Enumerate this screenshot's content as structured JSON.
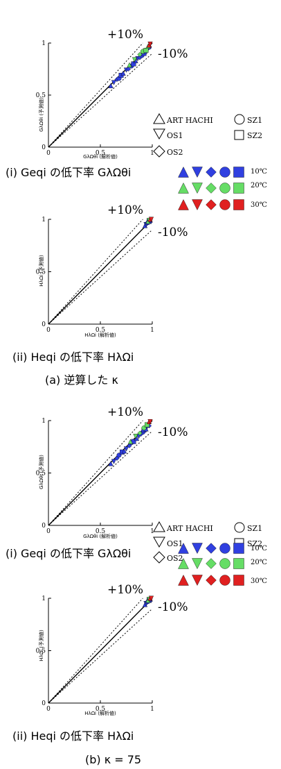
{
  "figure": {
    "section_a_caption": "(a) 逆算した κ",
    "section_b_caption": "(b) κ = 75"
  },
  "legend": {
    "specimens": [
      "ART HACHI",
      "OS1",
      "OS2",
      "SZ1",
      "SZ2"
    ],
    "temperatures": [
      "10℃",
      "20℃",
      "30℃"
    ],
    "colors": {
      "10℃": "#3040e0",
      "20℃": "#66dd66",
      "30℃": "#e02020"
    },
    "shapes": [
      "triangle-up",
      "triangle-down",
      "diamond",
      "circle",
      "square"
    ]
  },
  "chart_data": [
    {
      "type": "scatter",
      "panel": "(a)(i)",
      "caption": "(i) Geqi の低下率 GλΩθi",
      "xlabel": "GλΩθi (解析値)",
      "ylabel": "GλΩθi (予測値)",
      "xlim": [
        0,
        1
      ],
      "ylim": [
        0,
        1
      ],
      "xticks": [
        "0",
        "0.5",
        "1"
      ],
      "yticks": [
        "0",
        "0.5",
        "1"
      ],
      "annotations": [
        "+10%",
        "-10%"
      ],
      "reference_lines": [
        {
          "slope": 1
        },
        {
          "slope": 1.1
        },
        {
          "slope": 0.9
        }
      ],
      "series": [
        {
          "name": "10℃",
          "points": [
            [
              0.6,
              0.59
            ],
            [
              0.63,
              0.62
            ],
            [
              0.66,
              0.65
            ],
            [
              0.68,
              0.66
            ],
            [
              0.7,
              0.69
            ],
            [
              0.72,
              0.71
            ],
            [
              0.75,
              0.74
            ],
            [
              0.77,
              0.75
            ],
            [
              0.8,
              0.78
            ],
            [
              0.82,
              0.8
            ],
            [
              0.84,
              0.83
            ],
            [
              0.86,
              0.85
            ],
            [
              0.88,
              0.86
            ],
            [
              0.9,
              0.88
            ],
            [
              0.92,
              0.9
            ],
            [
              0.93,
              0.92
            ],
            [
              0.95,
              0.93
            ],
            [
              0.96,
              0.95
            ],
            [
              0.97,
              0.96
            ]
          ]
        },
        {
          "name": "20℃",
          "points": [
            [
              0.78,
              0.79
            ],
            [
              0.83,
              0.84
            ],
            [
              0.88,
              0.89
            ],
            [
              0.91,
              0.92
            ],
            [
              0.94,
              0.93
            ],
            [
              0.96,
              0.97
            ]
          ]
        },
        {
          "name": "30℃",
          "points": [
            [
              0.97,
              0.98
            ],
            [
              0.98,
              0.99
            ]
          ]
        }
      ]
    },
    {
      "type": "scatter",
      "panel": "(a)(ii)",
      "caption": "(ii) Heqi の低下率 HλΩi",
      "xlabel": "HλΩi (解析値)",
      "ylabel": "HλΩi (予測値)",
      "xlim": [
        0,
        1
      ],
      "ylim": [
        0,
        1
      ],
      "xticks": [
        "0",
        "0.5",
        "1"
      ],
      "yticks": [
        "0",
        "0.5",
        "1"
      ],
      "annotations": [
        "+10%",
        "-10%"
      ],
      "reference_lines": [
        {
          "slope": 1
        },
        {
          "slope": 1.1
        },
        {
          "slope": 0.9
        }
      ],
      "series": [
        {
          "name": "10℃",
          "points": [
            [
              0.93,
              0.94
            ],
            [
              0.94,
              0.95
            ],
            [
              0.95,
              0.96
            ],
            [
              0.96,
              0.97
            ],
            [
              0.97,
              0.98
            ],
            [
              0.98,
              0.99
            ]
          ]
        },
        {
          "name": "20℃",
          "points": [
            [
              0.96,
              0.98
            ],
            [
              0.97,
              0.99
            ]
          ]
        },
        {
          "name": "30℃",
          "points": [
            [
              0.98,
              1.0
            ],
            [
              0.99,
              1.0
            ]
          ]
        }
      ]
    },
    {
      "type": "scatter",
      "panel": "(b)(i)",
      "caption": "(i) Geqi の低下率 GλΩθi",
      "xlabel": "GλΩθi (解析値)",
      "ylabel": "GλΩθi (予測値)",
      "xlim": [
        0,
        1
      ],
      "ylim": [
        0,
        1
      ],
      "xticks": [
        "0",
        "0.5",
        "1"
      ],
      "yticks": [
        "0",
        "0.5",
        "1"
      ],
      "annotations": [
        "+10%",
        "-10%"
      ],
      "reference_lines": [
        {
          "slope": 1
        },
        {
          "slope": 1.1
        },
        {
          "slope": 0.9
        }
      ],
      "series": [
        {
          "name": "10℃",
          "points": [
            [
              0.6,
              0.59
            ],
            [
              0.63,
              0.61
            ],
            [
              0.66,
              0.64
            ],
            [
              0.68,
              0.67
            ],
            [
              0.71,
              0.7
            ],
            [
              0.73,
              0.71
            ],
            [
              0.75,
              0.73
            ],
            [
              0.78,
              0.76
            ],
            [
              0.8,
              0.79
            ],
            [
              0.82,
              0.8
            ],
            [
              0.85,
              0.83
            ],
            [
              0.87,
              0.85
            ],
            [
              0.89,
              0.87
            ],
            [
              0.91,
              0.89
            ],
            [
              0.92,
              0.91
            ],
            [
              0.94,
              0.92
            ],
            [
              0.95,
              0.94
            ],
            [
              0.97,
              0.95
            ]
          ]
        },
        {
          "name": "20℃",
          "points": [
            [
              0.79,
              0.8
            ],
            [
              0.84,
              0.85
            ],
            [
              0.88,
              0.88
            ],
            [
              0.92,
              0.93
            ],
            [
              0.95,
              0.96
            ]
          ]
        },
        {
          "name": "30℃",
          "points": [
            [
              0.97,
              0.99
            ],
            [
              0.98,
              0.99
            ]
          ]
        }
      ]
    },
    {
      "type": "scatter",
      "panel": "(b)(ii)",
      "caption": "(ii) Heqi の低下率 HλΩi",
      "xlabel": "HλΩi (解析値)",
      "ylabel": "HλΩi (予測値)",
      "xlim": [
        0,
        1
      ],
      "ylim": [
        0,
        1
      ],
      "xticks": [
        "0",
        "0.5",
        "1"
      ],
      "yticks": [
        "0",
        "0.5",
        "1"
      ],
      "annotations": [
        "+10%",
        "-10%"
      ],
      "reference_lines": [
        {
          "slope": 1
        },
        {
          "slope": 1.1
        },
        {
          "slope": 0.9
        }
      ],
      "series": [
        {
          "name": "10℃",
          "points": [
            [
              0.93,
              0.94
            ],
            [
              0.94,
              0.95
            ],
            [
              0.95,
              0.96
            ],
            [
              0.96,
              0.97
            ],
            [
              0.97,
              0.98
            ],
            [
              0.98,
              0.99
            ]
          ]
        },
        {
          "name": "20℃",
          "points": [
            [
              0.96,
              0.98
            ],
            [
              0.97,
              0.99
            ]
          ]
        },
        {
          "name": "30℃",
          "points": [
            [
              0.98,
              1.0
            ],
            [
              0.99,
              1.0
            ]
          ]
        }
      ]
    }
  ]
}
